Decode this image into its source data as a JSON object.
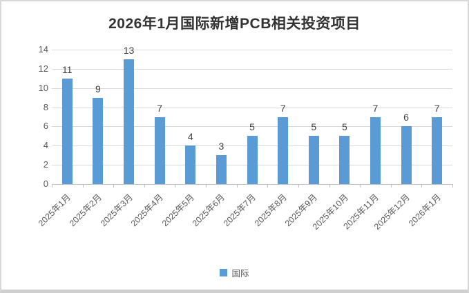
{
  "chart_data": {
    "type": "bar",
    "title": "2026年1月国际新增PCB相关投资项目",
    "categories": [
      "2025年1月",
      "2025年2月",
      "2025年3月",
      "2025年4月",
      "2025年5月",
      "2025年6月",
      "2025年7月",
      "2025年8月",
      "2025年9月",
      "2025年10月",
      "2025年11月",
      "2025年12月",
      "2026年1月"
    ],
    "series": [
      {
        "name": "国际",
        "color": "#5B9BD5",
        "values": [
          11,
          9,
          13,
          7,
          4,
          3,
          5,
          7,
          5,
          5,
          7,
          6,
          7
        ]
      }
    ],
    "yticks": [
      0,
      2,
      4,
      6,
      8,
      10,
      12,
      14
    ],
    "ylim": [
      0,
      14
    ],
    "grid": true,
    "data_labels": true,
    "x_label_rotation_deg": -45,
    "legend_position": "bottom"
  },
  "styles": {
    "bar_color": "#5B9BD5",
    "gridline_color": "#D9D9D9",
    "axis_line_color": "#BFBFBF",
    "title_color": "#333333",
    "tick_label_color": "#595959",
    "data_label_color": "#404040",
    "frame_border_color": "#D8D8D8",
    "background": "#FFFFFF"
  }
}
